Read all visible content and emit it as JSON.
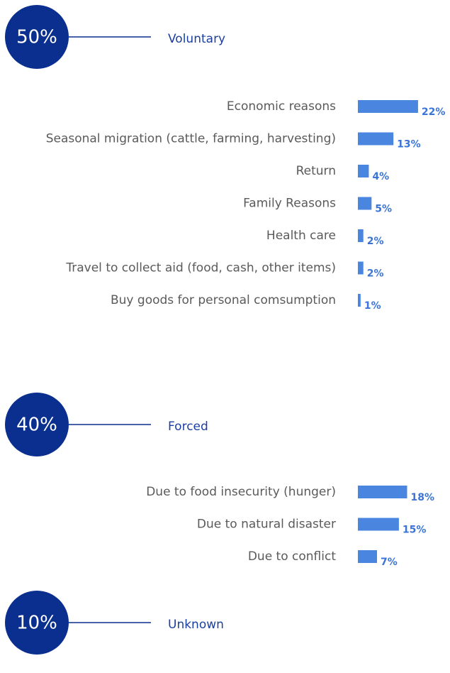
{
  "groups": [
    {
      "value": 50,
      "value_label": "50%",
      "label": "Voluntary",
      "categories": [
        "Economic reasons",
        "Seasonal migration (cattle, farming, harvesting)",
        "Return",
        "Family Reasons",
        "Health care",
        "Travel to collect aid (food, cash, other items)",
        "Buy goods for personal comsumption"
      ],
      "values": [
        22,
        13,
        4,
        5,
        2,
        2,
        1
      ],
      "value_labels": [
        "22%",
        "13%",
        "4%",
        "5%",
        "2%",
        "2%",
        "1%"
      ]
    },
    {
      "value": 40,
      "value_label": "40%",
      "label": "Forced",
      "categories": [
        "Due to food insecurity (hunger)",
        "Due to natural disaster",
        "Due to conflict"
      ],
      "values": [
        18,
        15,
        7
      ],
      "value_labels": [
        "18%",
        "15%",
        "7%"
      ]
    },
    {
      "value": 10,
      "value_label": "10%",
      "label": "Unknown",
      "categories": [],
      "values": [],
      "value_labels": []
    }
  ]
}
